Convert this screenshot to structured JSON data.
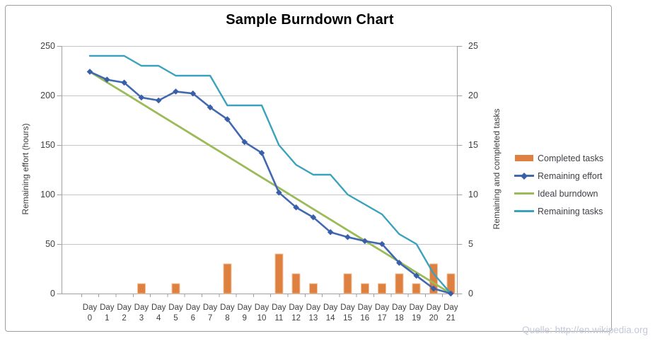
{
  "title": "Sample Burndown Chart",
  "watermark": "Quelle: http://en.wikipedia.org",
  "colors": {
    "background": "#FFFFFF",
    "frame_border": "#9E9E9E",
    "gridline": "#C6C6C6",
    "axis_line": "#A0A0A0",
    "tick_text": "#404040",
    "title_text": "#000000",
    "watermark_text": "#C5C8D8"
  },
  "chart_data": {
    "type": "combo",
    "title": "Sample Burndown Chart",
    "categories": [
      "Day 0",
      "Day 1",
      "Day 2",
      "Day 3",
      "Day 4",
      "Day 5",
      "Day 6",
      "Day 7",
      "Day 8",
      "Day 9",
      "Day 10",
      "Day 11",
      "Day 12",
      "Day 13",
      "Day 14",
      "Day 15",
      "Day 16",
      "Day 17",
      "Day 18",
      "Day 19",
      "Day 20",
      "Day 21"
    ],
    "left_axis": {
      "label": "Remaining effort (hours)",
      "range": [
        0,
        250
      ],
      "ticks": [
        0,
        50,
        100,
        150,
        200,
        250
      ]
    },
    "right_axis": {
      "label": "Remaining and  completed tasks",
      "range": [
        0,
        25
      ],
      "ticks": [
        0,
        5,
        10,
        15,
        20,
        25
      ]
    },
    "grid": "horizontal-major",
    "legend_position": "right",
    "series": [
      {
        "name": "Completed tasks",
        "type": "bar",
        "axis": "right",
        "color": "#DD8040",
        "values": [
          0,
          0,
          0,
          1,
          0,
          1,
          0,
          0,
          3,
          0,
          0,
          4,
          2,
          1,
          0,
          2,
          1,
          1,
          2,
          1,
          3,
          2
        ]
      },
      {
        "name": "Remaining effort",
        "type": "line",
        "marker": "diamond",
        "axis": "left",
        "color": "#4268B2",
        "values": [
          224,
          216,
          213,
          198,
          195,
          204,
          202,
          188,
          176,
          153,
          142,
          102,
          87,
          77,
          62,
          57,
          53,
          50,
          31,
          18,
          5,
          0
        ]
      },
      {
        "name": "Ideal burndown",
        "type": "line",
        "axis": "left",
        "color": "#9BBB59",
        "values": [
          224,
          213.3,
          202.7,
          192,
          181.3,
          170.7,
          160,
          149.3,
          138.7,
          128,
          117.3,
          106.7,
          96,
          85.3,
          74.7,
          64,
          53.3,
          42.7,
          32,
          21.3,
          10.7,
          0
        ]
      },
      {
        "name": "Remaining tasks",
        "type": "line",
        "axis": "right",
        "color": "#3BA2BC",
        "values": [
          24,
          24,
          24,
          23,
          23,
          22,
          22,
          22,
          19,
          19,
          19,
          15,
          13,
          12,
          12,
          10,
          9,
          8,
          6,
          5,
          2,
          0
        ]
      }
    ]
  }
}
